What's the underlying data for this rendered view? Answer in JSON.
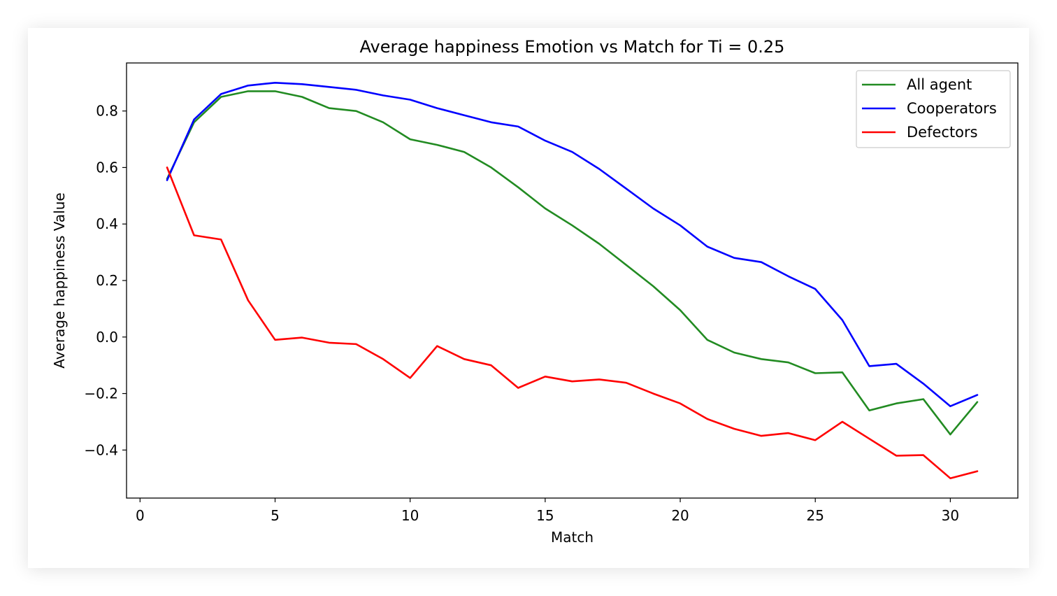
{
  "chart_data": {
    "type": "line",
    "title": "Average happiness Emotion vs Match for Ti = 0.25",
    "xlabel": "Match",
    "ylabel": "Average happiness Value",
    "xlim": [
      -0.5,
      32.5
    ],
    "ylim": [
      -0.57,
      0.97
    ],
    "xticks": [
      0,
      5,
      10,
      15,
      20,
      25,
      30
    ],
    "yticks": [
      -0.4,
      -0.2,
      0.0,
      0.2,
      0.4,
      0.6,
      0.8
    ],
    "ytick_labels": [
      "−0.4",
      "−0.2",
      "0.0",
      "0.2",
      "0.4",
      "0.6",
      "0.8"
    ],
    "grid": false,
    "legend_position": "top-right",
    "x": [
      1,
      2,
      3,
      4,
      5,
      6,
      7,
      8,
      9,
      10,
      11,
      12,
      13,
      14,
      15,
      16,
      17,
      18,
      19,
      20,
      21,
      22,
      23,
      24,
      25,
      26,
      27,
      28,
      29,
      30,
      31
    ],
    "series": [
      {
        "name": "All agent",
        "color": "#228B22",
        "values": [
          0.56,
          0.76,
          0.85,
          0.87,
          0.87,
          0.85,
          0.81,
          0.8,
          0.76,
          0.7,
          0.68,
          0.655,
          0.6,
          0.53,
          0.455,
          0.395,
          0.33,
          0.255,
          0.18,
          0.095,
          -0.01,
          -0.055,
          -0.078,
          -0.09,
          -0.128,
          -0.125,
          -0.26,
          -0.235,
          -0.22,
          -0.345,
          -0.23
        ]
      },
      {
        "name": "Cooperators",
        "color": "#0000FF",
        "values": [
          0.555,
          0.77,
          0.86,
          0.89,
          0.9,
          0.895,
          0.885,
          0.875,
          0.855,
          0.84,
          0.81,
          0.785,
          0.76,
          0.745,
          0.695,
          0.655,
          0.595,
          0.525,
          0.455,
          0.395,
          0.32,
          0.28,
          0.265,
          0.215,
          0.17,
          0.06,
          -0.103,
          -0.095,
          -0.165,
          -0.245,
          -0.205
        ]
      },
      {
        "name": "Defectors",
        "color": "#FF0000",
        "values": [
          0.6,
          0.36,
          0.345,
          0.13,
          -0.01,
          -0.002,
          -0.02,
          -0.025,
          -0.078,
          -0.145,
          -0.032,
          -0.078,
          -0.1,
          -0.18,
          -0.14,
          -0.157,
          -0.15,
          -0.162,
          -0.2,
          -0.235,
          -0.29,
          -0.325,
          -0.35,
          -0.34,
          -0.365,
          -0.3,
          -0.36,
          -0.42,
          -0.418,
          -0.5,
          -0.475
        ]
      }
    ]
  }
}
